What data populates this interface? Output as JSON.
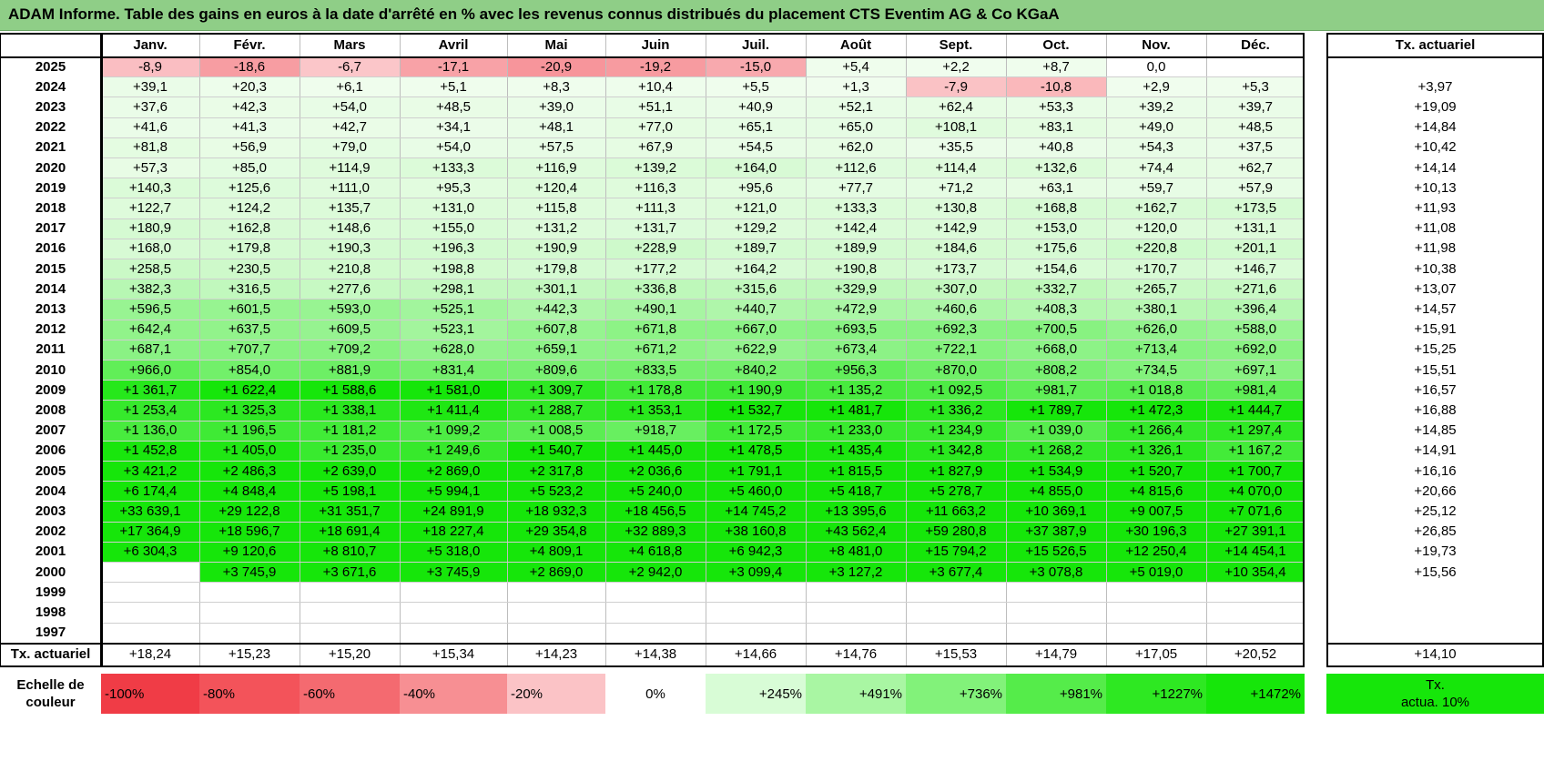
{
  "title": "ADAM Informe. Table des gains en euros à la date d'arrêté en % avec les revenus connus distribués du placement CTS Eventim AG & Co KGaA",
  "chart_data": {
    "type": "table",
    "months": [
      "Janv.",
      "Févr.",
      "Mars",
      "Avril",
      "Mai",
      "Juin",
      "Juil.",
      "Août",
      "Sept.",
      "Oct.",
      "Nov.",
      "Déc."
    ],
    "annual_header": "Tx. actuariel",
    "rows": [
      {
        "year": "2025",
        "values": [
          "-8,9",
          "-18,6",
          "-6,7",
          "-17,1",
          "-20,9",
          "-19,2",
          "-15,0",
          "+5,4",
          "+2,2",
          "+8,7",
          "0,0",
          ""
        ],
        "annual": ""
      },
      {
        "year": "2024",
        "values": [
          "+39,1",
          "+20,3",
          "+6,1",
          "+5,1",
          "+8,3",
          "+10,4",
          "+5,5",
          "+1,3",
          "-7,9",
          "-10,8",
          "+2,9",
          "+5,3"
        ],
        "annual": "+3,97"
      },
      {
        "year": "2023",
        "values": [
          "+37,6",
          "+42,3",
          "+54,0",
          "+48,5",
          "+39,0",
          "+51,1",
          "+40,9",
          "+52,1",
          "+62,4",
          "+53,3",
          "+39,2",
          "+39,7"
        ],
        "annual": "+19,09"
      },
      {
        "year": "2022",
        "values": [
          "+41,6",
          "+41,3",
          "+42,7",
          "+34,1",
          "+48,1",
          "+77,0",
          "+65,1",
          "+65,0",
          "+108,1",
          "+83,1",
          "+49,0",
          "+48,5"
        ],
        "annual": "+14,84"
      },
      {
        "year": "2021",
        "values": [
          "+81,8",
          "+56,9",
          "+79,0",
          "+54,0",
          "+57,5",
          "+67,9",
          "+54,5",
          "+62,0",
          "+35,5",
          "+40,8",
          "+54,3",
          "+37,5"
        ],
        "annual": "+10,42"
      },
      {
        "year": "2020",
        "values": [
          "+57,3",
          "+85,0",
          "+114,9",
          "+133,3",
          "+116,9",
          "+139,2",
          "+164,0",
          "+112,6",
          "+114,4",
          "+132,6",
          "+74,4",
          "+62,7"
        ],
        "annual": "+14,14"
      },
      {
        "year": "2019",
        "values": [
          "+140,3",
          "+125,6",
          "+111,0",
          "+95,3",
          "+120,4",
          "+116,3",
          "+95,6",
          "+77,7",
          "+71,2",
          "+63,1",
          "+59,7",
          "+57,9"
        ],
        "annual": "+10,13"
      },
      {
        "year": "2018",
        "values": [
          "+122,7",
          "+124,2",
          "+135,7",
          "+131,0",
          "+115,8",
          "+111,3",
          "+121,0",
          "+133,3",
          "+130,8",
          "+168,8",
          "+162,7",
          "+173,5"
        ],
        "annual": "+11,93"
      },
      {
        "year": "2017",
        "values": [
          "+180,9",
          "+162,8",
          "+148,6",
          "+155,0",
          "+131,2",
          "+131,7",
          "+129,2",
          "+142,4",
          "+142,9",
          "+153,0",
          "+120,0",
          "+131,1"
        ],
        "annual": "+11,08"
      },
      {
        "year": "2016",
        "values": [
          "+168,0",
          "+179,8",
          "+190,3",
          "+196,3",
          "+190,9",
          "+228,9",
          "+189,7",
          "+189,9",
          "+184,6",
          "+175,6",
          "+220,8",
          "+201,1"
        ],
        "annual": "+11,98"
      },
      {
        "year": "2015",
        "values": [
          "+258,5",
          "+230,5",
          "+210,8",
          "+198,8",
          "+179,8",
          "+177,2",
          "+164,2",
          "+190,8",
          "+173,7",
          "+154,6",
          "+170,7",
          "+146,7"
        ],
        "annual": "+10,38"
      },
      {
        "year": "2014",
        "values": [
          "+382,3",
          "+316,5",
          "+277,6",
          "+298,1",
          "+301,1",
          "+336,8",
          "+315,6",
          "+329,9",
          "+307,0",
          "+332,7",
          "+265,7",
          "+271,6"
        ],
        "annual": "+13,07"
      },
      {
        "year": "2013",
        "values": [
          "+596,5",
          "+601,5",
          "+593,0",
          "+525,1",
          "+442,3",
          "+490,1",
          "+440,7",
          "+472,9",
          "+460,6",
          "+408,3",
          "+380,1",
          "+396,4"
        ],
        "annual": "+14,57"
      },
      {
        "year": "2012",
        "values": [
          "+642,4",
          "+637,5",
          "+609,5",
          "+523,1",
          "+607,8",
          "+671,8",
          "+667,0",
          "+693,5",
          "+692,3",
          "+700,5",
          "+626,0",
          "+588,0"
        ],
        "annual": "+15,91"
      },
      {
        "year": "2011",
        "values": [
          "+687,1",
          "+707,7",
          "+709,2",
          "+628,0",
          "+659,1",
          "+671,2",
          "+622,9",
          "+673,4",
          "+722,1",
          "+668,0",
          "+713,4",
          "+692,0"
        ],
        "annual": "+15,25"
      },
      {
        "year": "2010",
        "values": [
          "+966,0",
          "+854,0",
          "+881,9",
          "+831,4",
          "+809,6",
          "+833,5",
          "+840,2",
          "+956,3",
          "+870,0",
          "+808,2",
          "+734,5",
          "+697,1"
        ],
        "annual": "+15,51"
      },
      {
        "year": "2009",
        "values": [
          "+1 361,7",
          "+1 622,4",
          "+1 588,6",
          "+1 581,0",
          "+1 309,7",
          "+1 178,8",
          "+1 190,9",
          "+1 135,2",
          "+1 092,5",
          "+981,7",
          "+1 018,8",
          "+981,4"
        ],
        "annual": "+16,57"
      },
      {
        "year": "2008",
        "values": [
          "+1 253,4",
          "+1 325,3",
          "+1 338,1",
          "+1 411,4",
          "+1 288,7",
          "+1 353,1",
          "+1 532,7",
          "+1 481,7",
          "+1 336,2",
          "+1 789,7",
          "+1 472,3",
          "+1 444,7"
        ],
        "annual": "+16,88"
      },
      {
        "year": "2007",
        "values": [
          "+1 136,0",
          "+1 196,5",
          "+1 181,2",
          "+1 099,2",
          "+1 008,5",
          "+918,7",
          "+1 172,5",
          "+1 233,0",
          "+1 234,9",
          "+1 039,0",
          "+1 266,4",
          "+1 297,4"
        ],
        "annual": "+14,85"
      },
      {
        "year": "2006",
        "values": [
          "+1 452,8",
          "+1 405,0",
          "+1 235,0",
          "+1 249,6",
          "+1 540,7",
          "+1 445,0",
          "+1 478,5",
          "+1 435,4",
          "+1 342,8",
          "+1 268,2",
          "+1 326,1",
          "+1 167,2"
        ],
        "annual": "+14,91"
      },
      {
        "year": "2005",
        "values": [
          "+3 421,2",
          "+2 486,3",
          "+2 639,0",
          "+2 869,0",
          "+2 317,8",
          "+2 036,6",
          "+1 791,1",
          "+1 815,5",
          "+1 827,9",
          "+1 534,9",
          "+1 520,7",
          "+1 700,7"
        ],
        "annual": "+16,16"
      },
      {
        "year": "2004",
        "values": [
          "+6 174,4",
          "+4 848,4",
          "+5 198,1",
          "+5 994,1",
          "+5 523,2",
          "+5 240,0",
          "+5 460,0",
          "+5 418,7",
          "+5 278,7",
          "+4 855,0",
          "+4 815,6",
          "+4 070,0"
        ],
        "annual": "+20,66"
      },
      {
        "year": "2003",
        "values": [
          "+33 639,1",
          "+29 122,8",
          "+31 351,7",
          "+24 891,9",
          "+18 932,3",
          "+18 456,5",
          "+14 745,2",
          "+13 395,6",
          "+11 663,2",
          "+10 369,1",
          "+9 007,5",
          "+7 071,6"
        ],
        "annual": "+25,12"
      },
      {
        "year": "2002",
        "values": [
          "+17 364,9",
          "+18 596,7",
          "+18 691,4",
          "+18 227,4",
          "+29 354,8",
          "+32 889,3",
          "+38 160,8",
          "+43 562,4",
          "+59 280,8",
          "+37 387,9",
          "+30 196,3",
          "+27 391,1"
        ],
        "annual": "+26,85"
      },
      {
        "year": "2001",
        "values": [
          "+6 304,3",
          "+9 120,6",
          "+8 810,7",
          "+5 318,0",
          "+4 809,1",
          "+4 618,8",
          "+6 942,3",
          "+8 481,0",
          "+15 794,2",
          "+15 526,5",
          "+12 250,4",
          "+14 454,1"
        ],
        "annual": "+19,73"
      },
      {
        "year": "2000",
        "values": [
          "",
          "+3 745,9",
          "+3 671,6",
          "+3 745,9",
          "+2 869,0",
          "+2 942,0",
          "+3 099,4",
          "+3 127,2",
          "+3 677,4",
          "+3 078,8",
          "+5 019,0",
          "+10 354,4"
        ],
        "annual": "+15,56"
      },
      {
        "year": "1999",
        "values": [
          "",
          "",
          "",
          "",
          "",
          "",
          "",
          "",
          "",
          "",
          "",
          ""
        ],
        "annual": ""
      },
      {
        "year": "1998",
        "values": [
          "",
          "",
          "",
          "",
          "",
          "",
          "",
          "",
          "",
          "",
          "",
          ""
        ],
        "annual": ""
      },
      {
        "year": "1997",
        "values": [
          "",
          "",
          "",
          "",
          "",
          "",
          "",
          "",
          "",
          "",
          "",
          ""
        ],
        "annual": ""
      }
    ],
    "summary_label": "Tx. actuariel",
    "summary_values": [
      "+18,24",
      "+15,23",
      "+15,20",
      "+15,34",
      "+14,23",
      "+14,38",
      "+14,66",
      "+14,76",
      "+15,53",
      "+14,79",
      "+17,05",
      "+20,52"
    ],
    "summary_annual": "+14,10",
    "legend_label": [
      "Echelle de",
      "couleur"
    ],
    "legend": [
      {
        "label": "-100%",
        "color": "#f03c46",
        "align": "left"
      },
      {
        "label": "-80%",
        "color": "#f3535a",
        "align": "left"
      },
      {
        "label": "-60%",
        "color": "#f46a70",
        "align": "left"
      },
      {
        "label": "-40%",
        "color": "#f78f93",
        "align": "left"
      },
      {
        "label": "-20%",
        "color": "#fbc3c6",
        "align": "left"
      },
      {
        "label": "0%",
        "color": "#ffffff",
        "align": "center"
      },
      {
        "label": "+245%",
        "color": "#d8fcd6",
        "align": "right"
      },
      {
        "label": "+491%",
        "color": "#a9f6a3",
        "align": "right"
      },
      {
        "label": "+736%",
        "color": "#82f27a",
        "align": "right"
      },
      {
        "label": "+981%",
        "color": "#55ec4a",
        "align": "right"
      },
      {
        "label": "+1227%",
        "color": "#2ee822",
        "align": "right"
      },
      {
        "label": "+1472%",
        "color": "#16e60a",
        "align": "right"
      }
    ],
    "legend_right": [
      "Tx.",
      "actua. 10%"
    ],
    "legend_right_color": "#16e60a"
  }
}
